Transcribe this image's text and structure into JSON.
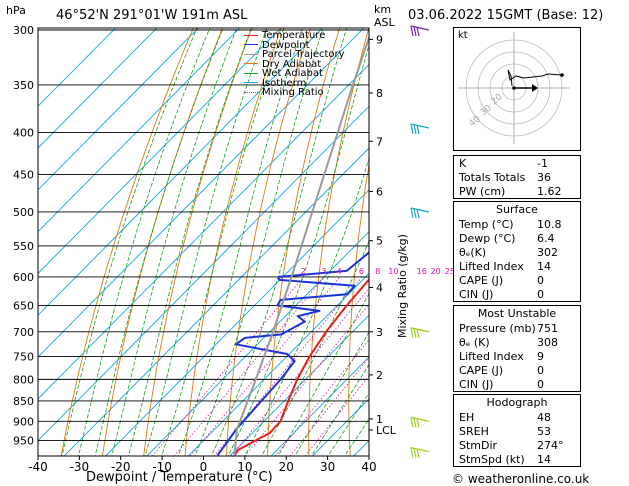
{
  "header": {
    "hpa_label": "hPa",
    "location": "46°52'N  291°01'W  191m  ASL",
    "km_label": "km",
    "asl_label": "ASL",
    "datetime": "03.06.2022  15GMT  (Base: 12)"
  },
  "chart_data": {
    "type": "line",
    "title": "",
    "xlabel": "Dewpoint / Temperature (°C)",
    "ylabel": "",
    "mixing_ratio_axis_label": "Mixing Ratio (g/kg)",
    "xlim": [
      -40,
      40
    ],
    "pressure_range": [
      300,
      1000
    ],
    "x_ticks": [
      -40,
      -30,
      -20,
      -10,
      0,
      10,
      20,
      30,
      40
    ],
    "pressure_ticks": [
      300,
      350,
      400,
      450,
      500,
      550,
      600,
      650,
      700,
      750,
      800,
      850,
      900,
      950
    ],
    "km_ticks": [
      {
        "label": "9",
        "p": 308
      },
      {
        "label": "8",
        "p": 358
      },
      {
        "label": "7",
        "p": 410
      },
      {
        "label": "6",
        "p": 472
      },
      {
        "label": "5",
        "p": 542
      },
      {
        "label": "4",
        "p": 618
      },
      {
        "label": "3",
        "p": 700
      },
      {
        "label": "2",
        "p": 790
      },
      {
        "label": "1",
        "p": 894
      },
      {
        "label": "LCL",
        "p": 922
      }
    ],
    "mixing_ratio_labels": [
      "2",
      "3",
      "4",
      "6",
      "8",
      "10",
      "16",
      "20",
      "25"
    ],
    "mixing_ratio_values": [
      2,
      3,
      4,
      6,
      8,
      10,
      16,
      20,
      25
    ],
    "legend": [
      {
        "name": "Temperature",
        "color": "#e8201a"
      },
      {
        "name": "Dewpoint",
        "color": "#1a34d8"
      },
      {
        "name": "Parcel Trajectory",
        "color": "#9a9a9a"
      },
      {
        "name": "Dry Adiabat",
        "color": "#e07a10"
      },
      {
        "name": "Wet Adiabat",
        "color": "#10a010"
      },
      {
        "name": "Isotherm",
        "color": "#10a8e0"
      },
      {
        "name": "Mixing Ratio",
        "color": "#e010b0"
      }
    ],
    "series": [
      {
        "name": "Temperature",
        "points": [
          [
            990,
            11.0
          ],
          [
            975,
            10.6
          ],
          [
            960,
            11.8
          ],
          [
            930,
            14.2
          ],
          [
            900,
            14.0
          ],
          [
            850,
            11.0
          ],
          [
            800,
            8.0
          ],
          [
            750,
            5.5
          ],
          [
            700,
            3.6
          ],
          [
            650,
            2.3
          ],
          [
            600,
            1.4
          ],
          [
            550,
            -1.6
          ],
          [
            500,
            -6.0
          ],
          [
            450,
            -11.4
          ],
          [
            420,
            -14.6
          ],
          [
            400,
            -17.6
          ],
          [
            380,
            -20.0
          ],
          [
            350,
            -25.0
          ],
          [
            320,
            -30.6
          ],
          [
            300,
            -34.5
          ]
        ]
      },
      {
        "name": "Dewpoint",
        "points": [
          [
            990,
            6.9
          ],
          [
            950,
            6.0
          ],
          [
            920,
            5.2
          ],
          [
            900,
            5.0
          ],
          [
            850,
            4.5
          ],
          [
            800,
            4.0
          ],
          [
            760,
            3.0
          ],
          [
            745,
            -0.5
          ],
          [
            725,
            -15.2
          ],
          [
            712,
            -14.6
          ],
          [
            705,
            -6.6
          ],
          [
            680,
            -4.0
          ],
          [
            670,
            -7.0
          ],
          [
            660,
            -3.0
          ],
          [
            650,
            -14.5
          ],
          [
            640,
            -15.0
          ],
          [
            630,
            -0.3
          ],
          [
            615,
            -0.5
          ],
          [
            605,
            -20.2
          ],
          [
            600,
            -21.0
          ],
          [
            590,
            -6.0
          ],
          [
            560,
            -5.0
          ],
          [
            550,
            -4.0
          ],
          [
            520,
            -5.2
          ],
          [
            500,
            -7.0
          ],
          [
            460,
            -10.3
          ],
          [
            430,
            -12.5
          ],
          [
            410,
            -14.3
          ],
          [
            395,
            -31.8
          ],
          [
            385,
            -30.2
          ],
          [
            370,
            -22.7
          ],
          [
            355,
            -20.0
          ],
          [
            345,
            -23.3
          ],
          [
            330,
            -24.7
          ],
          [
            320,
            -27.4
          ],
          [
            300,
            -32.0
          ]
        ]
      },
      {
        "name": "Parcel Trajectory",
        "points": [
          [
            990,
            11.0
          ],
          [
            922,
            5.5
          ],
          [
            850,
            1.2
          ],
          [
            800,
            -2.0
          ],
          [
            750,
            -5.5
          ],
          [
            700,
            -9.2
          ],
          [
            650,
            -13.4
          ],
          [
            600,
            -17.9
          ],
          [
            550,
            -22.9
          ],
          [
            500,
            -28.4
          ],
          [
            450,
            -34.5
          ],
          [
            400,
            -41.3
          ],
          [
            350,
            -49.0
          ],
          [
            300,
            -57.6
          ]
        ]
      }
    ],
    "wind_barbs_p": [
      300,
      395,
      500,
      700,
      900,
      980
    ]
  },
  "hodograph": {
    "label": "kt",
    "ring_labels": [
      "40",
      "30",
      "20"
    ]
  },
  "indices": {
    "k_label": "K",
    "k_value": "-1",
    "tt_label": "Totals Totals",
    "tt_value": "36",
    "pw_label": "PW (cm)",
    "pw_value": "1.62"
  },
  "surface": {
    "title": "Surface",
    "rows": [
      {
        "label": "Temp (°C)",
        "value": "10.8"
      },
      {
        "label": "Dewp (°C)",
        "value": "6.4"
      },
      {
        "label": "θₑ(K)",
        "value": "302"
      },
      {
        "label": "Lifted Index",
        "value": "14"
      },
      {
        "label": "CAPE (J)",
        "value": "0"
      },
      {
        "label": "CIN (J)",
        "value": "0"
      }
    ]
  },
  "most_unstable": {
    "title": "Most Unstable",
    "rows": [
      {
        "label": "Pressure (mb)",
        "value": "751"
      },
      {
        "label": "θₑ (K)",
        "value": "308"
      },
      {
        "label": "Lifted Index",
        "value": "9"
      },
      {
        "label": "CAPE (J)",
        "value": "0"
      },
      {
        "label": "CIN (J)",
        "value": "0"
      }
    ]
  },
  "hodograph_table": {
    "title": "Hodograph",
    "rows": [
      {
        "label": "EH",
        "value": "48"
      },
      {
        "label": "SREH",
        "value": "53"
      },
      {
        "label": "StmDir",
        "value": "274°"
      },
      {
        "label": "StmSpd (kt)",
        "value": "14"
      }
    ]
  },
  "copyright": "© weatheronline.co.uk"
}
